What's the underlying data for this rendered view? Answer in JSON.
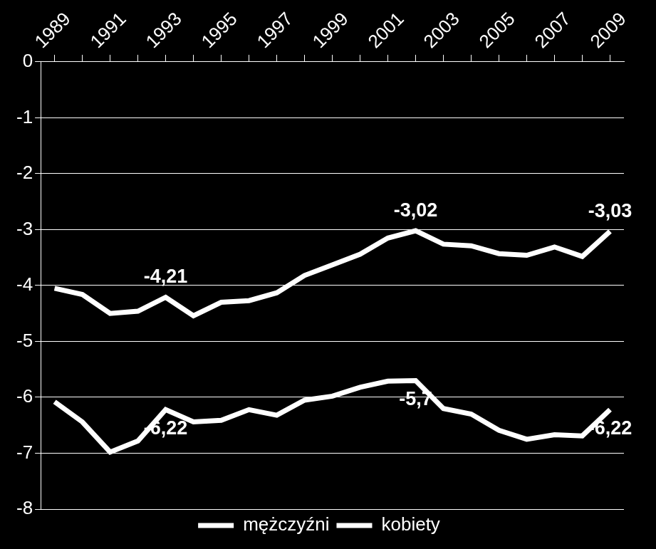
{
  "chart_data": {
    "type": "line",
    "categories": [
      "1989",
      null,
      "1991",
      null,
      "1993",
      null,
      "1995",
      null,
      "1997",
      null,
      "1999",
      null,
      "2001",
      null,
      "2003",
      null,
      "2005",
      null,
      "2007",
      null,
      "2009"
    ],
    "series": [
      {
        "name": "mężczyźni",
        "color": "#ffffff",
        "values": [
          -4.05,
          -4.16,
          -4.5,
          -4.46,
          -4.21,
          -4.54,
          -4.3,
          -4.27,
          -4.13,
          -3.82,
          -3.63,
          -3.44,
          -3.15,
          -3.02,
          -3.26,
          -3.29,
          -3.43,
          -3.46,
          -3.31,
          -3.48,
          -3.03
        ],
        "value_labels": [
          null,
          null,
          null,
          null,
          "-4,21",
          null,
          null,
          null,
          null,
          null,
          null,
          null,
          null,
          "-3,02",
          null,
          null,
          null,
          null,
          null,
          null,
          "-3,03"
        ]
      },
      {
        "name": "kobiety",
        "color": "#ffffff",
        "values": [
          -6.08,
          -6.44,
          -6.98,
          -6.78,
          -6.22,
          -6.44,
          -6.41,
          -6.22,
          -6.32,
          -6.05,
          -5.98,
          -5.82,
          -5.71,
          -5.7,
          -6.2,
          -6.3,
          -6.59,
          -6.75,
          -6.67,
          -6.69,
          -6.22
        ],
        "value_labels": [
          null,
          null,
          null,
          null,
          "-6,22",
          null,
          null,
          null,
          null,
          null,
          null,
          null,
          null,
          "-5,7",
          null,
          null,
          null,
          null,
          null,
          null,
          "-6,22"
        ]
      }
    ],
    "ylim": [
      -8,
      0
    ],
    "yticks": [
      -8,
      -7,
      -6,
      -5,
      -4,
      -3,
      -2,
      -1,
      0
    ],
    "grid": true,
    "legend": "bottom"
  }
}
